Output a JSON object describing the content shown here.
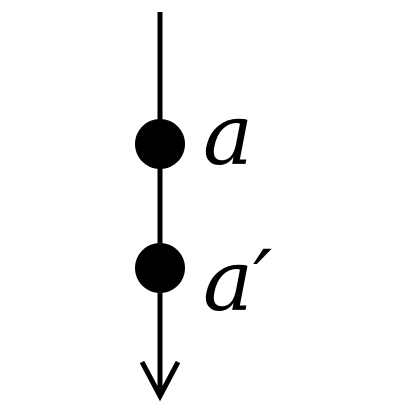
{
  "diagram": {
    "nodes": [
      {
        "label": "a"
      },
      {
        "label": "a′"
      }
    ],
    "colors": {
      "stroke": "#000000",
      "node_fill": "#000000",
      "label_fill": "#000000",
      "background": "#ffffff"
    },
    "edge": {
      "direction": "down",
      "arrowhead": "open"
    }
  }
}
